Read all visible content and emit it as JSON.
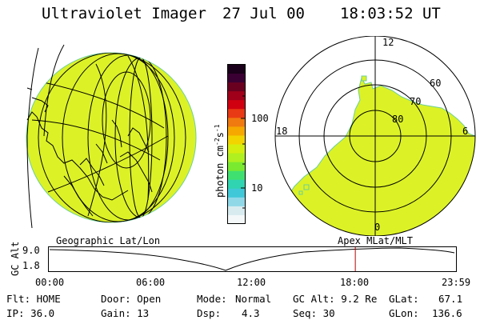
{
  "header": {
    "instrument": "Ultraviolet Imager",
    "date": "27 Jul 00",
    "time": "18:03:52 UT"
  },
  "colorbar": {
    "unit_prefix": "photon cm",
    "unit_exp1": "-2",
    "unit_mid": "s",
    "unit_exp2": "-1",
    "tick_100": "100",
    "tick_10": "10",
    "colors": [
      "#1a001a",
      "#3b0033",
      "#6a0020",
      "#a0001a",
      "#d00010",
      "#e83a14",
      "#f07a10",
      "#f6a800",
      "#f2d400",
      "#d4ee10",
      "#b0f020",
      "#7aea30",
      "#40e070",
      "#30d4b0",
      "#40c8d8",
      "#90d8e8",
      "#d8ecf0",
      "#f4f8f8"
    ]
  },
  "polar_labels": {
    "top": "12",
    "left": "18",
    "right": "6",
    "bottom": "0",
    "r60": "60",
    "r70": "70",
    "r80": "80"
  },
  "timeline": {
    "left_label": "Geographic Lat/Lon",
    "right_label": "Apex MLat/MLT",
    "axis_label": "GC Alt",
    "y_top": "9.0",
    "y_bottom": "1.8",
    "ticks": [
      "00:00",
      "06:00",
      "12:00",
      "18:00",
      "23:59"
    ],
    "marker_fraction": 0.7527
  },
  "footer": {
    "flt": "Flt: HOME",
    "ip": "IP: 36.0",
    "door": "Door: Open",
    "gain": "Gain: 13",
    "mode_label": "Mode:",
    "mode_value": "Normal",
    "dsp_label": "Dsp:",
    "dsp_value": "4.3",
    "gcalt": "GC Alt: 9.2 Re",
    "seq": "Seq: 30",
    "glat_label": "GLat:",
    "glat_value": "67.1",
    "glon_label": "GLon:",
    "glon_value": "136.6"
  }
}
